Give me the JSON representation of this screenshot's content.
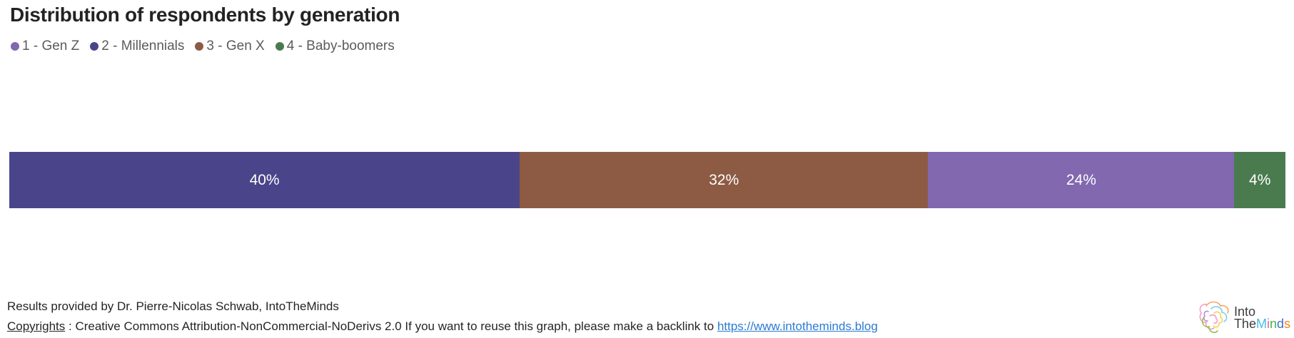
{
  "chart": {
    "title": "Distribution of respondents by generation",
    "legend": [
      {
        "label": "1 - Gen Z",
        "color": "#8168AF"
      },
      {
        "label": "2 - Millennials",
        "color": "#4A458A"
      },
      {
        "label": "3 - Gen X",
        "color": "#8D5B44"
      },
      {
        "label": "4 - Baby-boomers",
        "color": "#4A7B4F"
      }
    ],
    "chart_data": {
      "type": "bar",
      "variant": "horizontal-stacked-100pct",
      "title": "Distribution of respondents by generation",
      "categories": [
        "Respondents"
      ],
      "series": [
        {
          "name": "2 - Millennials",
          "value": 40,
          "label": "40%",
          "color": "#4A458A"
        },
        {
          "name": "3 - Gen X",
          "value": 32,
          "label": "32%",
          "color": "#8D5B44"
        },
        {
          "name": "1 - Gen Z",
          "value": 24,
          "label": "24%",
          "color": "#8168AF"
        },
        {
          "name": "4 - Baby-boomers",
          "value": 4,
          "label": "4%",
          "color": "#4A7B4F"
        }
      ],
      "unit": "percent",
      "xlim": [
        0,
        100
      ],
      "axes_visible": false,
      "grid": false,
      "legend_position": "top-left",
      "legend_order": [
        "1 - Gen Z",
        "2 - Millennials",
        "3 - Gen X",
        "4 - Baby-boomers"
      ]
    }
  },
  "footer": {
    "line1": "Results provided by Dr. Pierre-Nicolas Schwab, IntoTheMinds",
    "line2_word": "Copyrights",
    "line2_sep": " : ",
    "line2_text": "Creative Commons Attribution-NonCommercial-NoDerivs 2.0 If you want to reuse this graph, please make a backlink to ",
    "link_text": "https://www.intotheminds.blog",
    "link_color": "#2B7BD4"
  },
  "logo": {
    "name": "IntoTheMinds",
    "line1": "Into",
    "line2_prefix": "The",
    "colored_letters": [
      {
        "char": "M",
        "color": "#45BCE8"
      },
      {
        "char": "i",
        "color": "#F0609E"
      },
      {
        "char": "n",
        "color": "#47B254"
      },
      {
        "char": "d",
        "color": "#3E6FD0"
      },
      {
        "char": "s",
        "color": "#F5821F"
      }
    ],
    "brain_colors": [
      "#F59BC8",
      "#F9A661",
      "#74CEF2",
      "#8CC63F",
      "#B78CD6",
      "#F7D154"
    ]
  }
}
